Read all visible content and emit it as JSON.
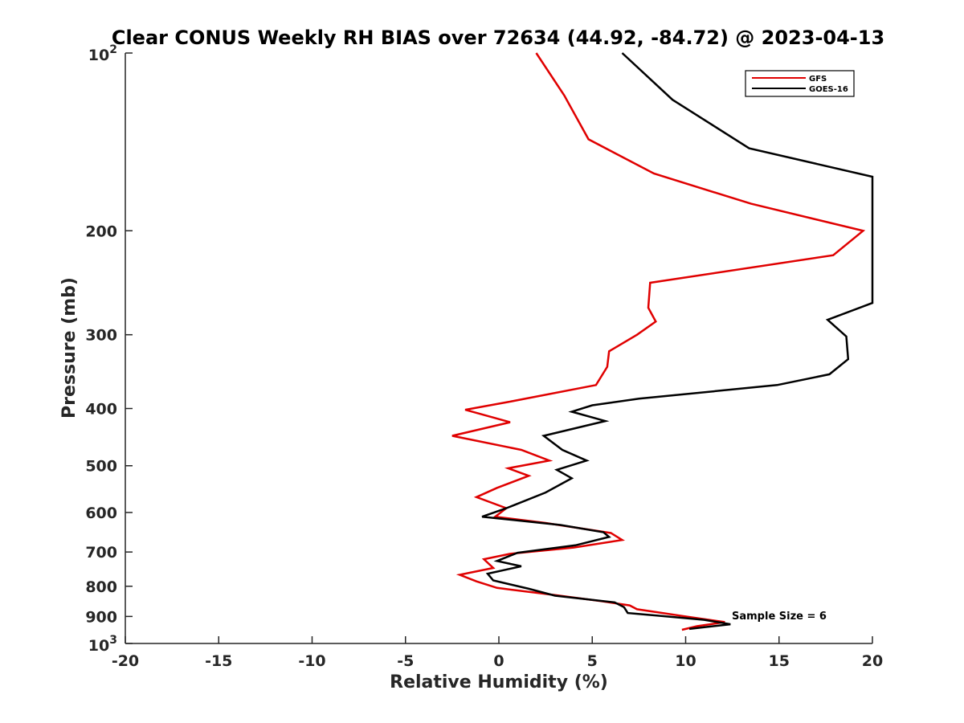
{
  "chart_data": {
    "type": "line",
    "title": "Clear CONUS Weekly RH BIAS over 72634 (44.92, -84.72) @ 2023-04-13",
    "xlabel": "Relative Humidity (%)",
    "ylabel": "Pressure (mb)",
    "xlim": [
      -20,
      20
    ],
    "ylim": [
      100,
      1000
    ],
    "yscale": "log",
    "y_reversed": true,
    "grid": false,
    "x_ticks": [
      -20,
      -15,
      -10,
      -5,
      0,
      5,
      10,
      15,
      20
    ],
    "x_tick_labels": [
      "-20",
      "-15",
      "-10",
      "-5",
      "0",
      "5",
      "10",
      "15",
      "20"
    ],
    "y_ticks": [
      200,
      300,
      400,
      500,
      600,
      700,
      800,
      900
    ],
    "y_tick_labels": [
      "200",
      "300",
      "400",
      "500",
      "600",
      "700",
      "800",
      "900"
    ],
    "y_tick_base_labels": [
      {
        "value": 100,
        "base": "10",
        "exp": "2"
      },
      {
        "value": 1000,
        "base": "10",
        "exp": "3"
      }
    ],
    "legend": {
      "position": "top-right",
      "entries": [
        "GFS",
        "GOES-16"
      ]
    },
    "annotation": "Sample Size = 6",
    "series": [
      {
        "name": "GFS",
        "color": "#e00000",
        "points": [
          [
            2.0,
            100
          ],
          [
            3.5,
            118
          ],
          [
            4.8,
            140
          ],
          [
            8.3,
            160
          ],
          [
            13.5,
            180
          ],
          [
            19.5,
            200
          ],
          [
            17.9,
            220
          ],
          [
            8.1,
            245
          ],
          [
            8.0,
            270
          ],
          [
            8.4,
            285
          ],
          [
            7.4,
            300
          ],
          [
            5.9,
            320
          ],
          [
            5.8,
            340
          ],
          [
            5.2,
            365
          ],
          [
            0.5,
            390
          ],
          [
            -1.8,
            402
          ],
          [
            0.6,
            422
          ],
          [
            -2.5,
            445
          ],
          [
            1.2,
            470
          ],
          [
            2.7,
            490
          ],
          [
            0.5,
            505
          ],
          [
            1.6,
            520
          ],
          [
            -0.1,
            545
          ],
          [
            -1.2,
            565
          ],
          [
            0.4,
            590
          ],
          [
            -0.2,
            610
          ],
          [
            2.5,
            625
          ],
          [
            6.0,
            650
          ],
          [
            6.6,
            668
          ],
          [
            4.0,
            688
          ],
          [
            0.6,
            705
          ],
          [
            -0.8,
            720
          ],
          [
            -0.3,
            745
          ],
          [
            -2.1,
            765
          ],
          [
            -1.2,
            785
          ],
          [
            -0.1,
            805
          ],
          [
            3.0,
            828
          ],
          [
            5.5,
            848
          ],
          [
            7.0,
            862
          ],
          [
            7.4,
            875
          ],
          [
            9.8,
            898
          ],
          [
            12.1,
            920
          ],
          [
            10.6,
            935
          ],
          [
            9.8,
            948
          ]
        ]
      },
      {
        "name": "GOES-16",
        "color": "#000000",
        "points": [
          [
            6.6,
            100
          ],
          [
            9.3,
            120
          ],
          [
            13.4,
            145
          ],
          [
            20.0,
            162
          ],
          [
            20.0,
            265
          ],
          [
            17.6,
            283
          ],
          [
            18.6,
            302
          ],
          [
            18.7,
            330
          ],
          [
            17.7,
            350
          ],
          [
            14.9,
            365
          ],
          [
            7.5,
            385
          ],
          [
            5.0,
            395
          ],
          [
            3.9,
            405
          ],
          [
            5.7,
            420
          ],
          [
            2.4,
            445
          ],
          [
            3.4,
            470
          ],
          [
            4.7,
            490
          ],
          [
            3.1,
            508
          ],
          [
            3.9,
            525
          ],
          [
            2.5,
            555
          ],
          [
            0.4,
            590
          ],
          [
            -0.9,
            610
          ],
          [
            3.3,
            630
          ],
          [
            5.6,
            648
          ],
          [
            5.9,
            660
          ],
          [
            4.1,
            682
          ],
          [
            1.0,
            702
          ],
          [
            -0.1,
            725
          ],
          [
            1.2,
            740
          ],
          [
            -0.6,
            762
          ],
          [
            -0.3,
            782
          ],
          [
            1.6,
            808
          ],
          [
            3.0,
            830
          ],
          [
            6.2,
            852
          ],
          [
            6.7,
            868
          ],
          [
            6.9,
            888
          ],
          [
            8.7,
            898
          ],
          [
            11.0,
            912
          ],
          [
            12.4,
            928
          ],
          [
            10.2,
            945
          ]
        ]
      }
    ]
  }
}
